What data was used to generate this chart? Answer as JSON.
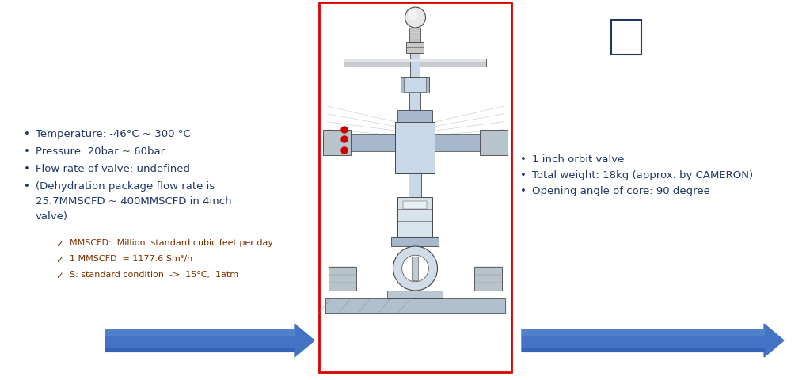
{
  "bg_color": "#ffffff",
  "left_bullets": [
    {
      "text": "Temperature: -46°C ~ 300 °C",
      "color": "#1f3b6e"
    },
    {
      "text": "Pressure: 20bar ~ 60bar",
      "color": "#1f3b6e"
    },
    {
      "text": "Flow rate of valve: undefined",
      "color": "#1f3b6e"
    },
    {
      "text": "(Dehydration package flow rate is",
      "color": "#1f3b6e"
    },
    {
      "text": "25.7MMSCFD ~ 400MMSCFD in 4inch",
      "color": "#1f3b6e"
    },
    {
      "text": "valve)",
      "color": "#1f3b6e"
    }
  ],
  "sub_bullets": [
    {
      "text": "MMSCFD:  Million  standard cubic feet per day",
      "color": "#7b3000"
    },
    {
      "text": "1 MMSCFD  = 1177.6 Sm³/h",
      "color": "#7b3000"
    },
    {
      "text": "S: standard condition  ->  15°C,  1atm",
      "color": "#7b3000"
    }
  ],
  "right_bullets": [
    {
      "text": "1 inch orbit valve",
      "color": "#1f3b6e"
    },
    {
      "text": "Total weight: 18kg (approx. by CAMERON)",
      "color": "#1f3b6e"
    },
    {
      "text": "Opening angle of core: 90 degree",
      "color": "#1f3b6e"
    }
  ],
  "arrow_color": "#4472c4",
  "arrow_color_light": "#5b8fd4",
  "arrow_shadow": "#2255a4",
  "rect_border_color": "#dd0000",
  "small_rect_color": "#1f3b6e",
  "valve_bg": "#ffffff",
  "valve_line": "#444444",
  "valve_fill_light": "#c8d8e8",
  "valve_fill_mid": "#a8b8cc",
  "valve_fill_dark": "#8898ac"
}
